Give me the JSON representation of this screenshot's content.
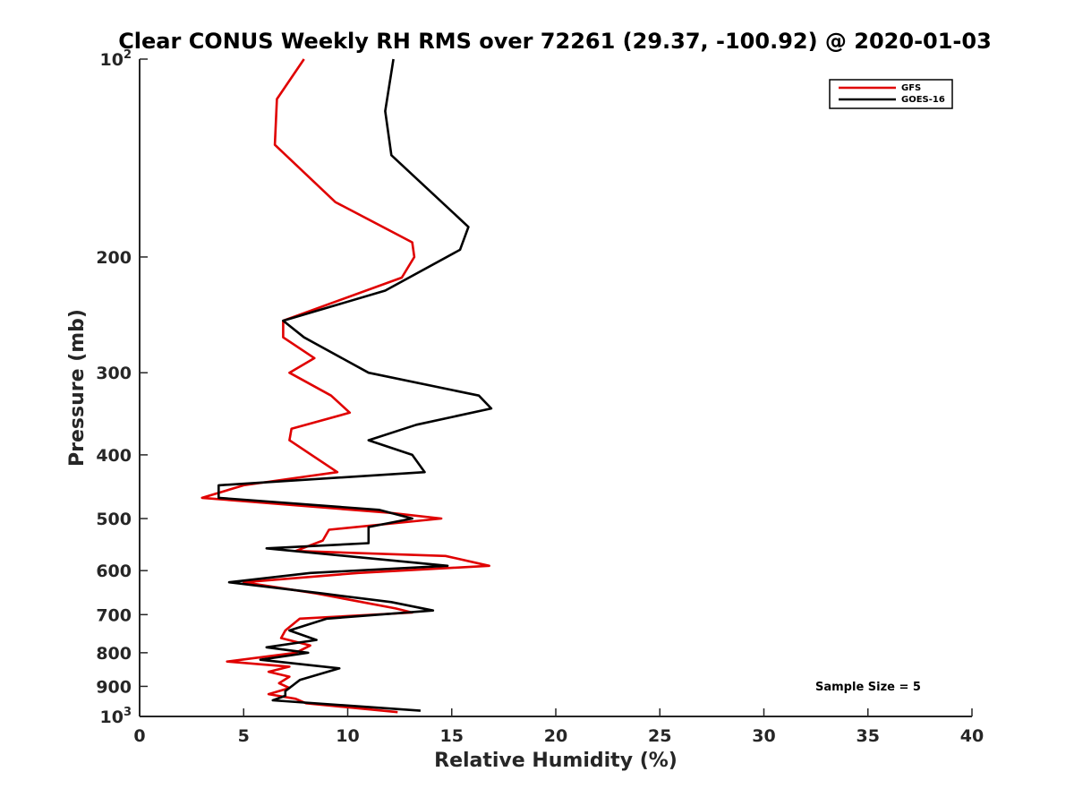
{
  "chart_data": {
    "type": "line",
    "title": "Clear CONUS Weekly RH RMS over 72261 (29.37, -100.92) @ 2020-01-03",
    "xlabel": "Relative Humidity (%)",
    "ylabel": "Pressure (mb)",
    "xlim": [
      0,
      40
    ],
    "ylim": [
      100,
      1000
    ],
    "yscale": "log",
    "y_reversed": true,
    "x_ticks": [
      "0",
      "5",
      "10",
      "15",
      "20",
      "25",
      "30",
      "35",
      "40"
    ],
    "x_tick_values": [
      0,
      5,
      10,
      15,
      20,
      25,
      30,
      35,
      40
    ],
    "y_ticks": [
      {
        "value": 100,
        "base": "10",
        "exp": "2"
      },
      {
        "value": 200,
        "base": "200",
        "exp": ""
      },
      {
        "value": 300,
        "base": "300",
        "exp": ""
      },
      {
        "value": 400,
        "base": "400",
        "exp": ""
      },
      {
        "value": 500,
        "base": "500",
        "exp": ""
      },
      {
        "value": 600,
        "base": "600",
        "exp": ""
      },
      {
        "value": 700,
        "base": "700",
        "exp": ""
      },
      {
        "value": 800,
        "base": "800",
        "exp": ""
      },
      {
        "value": 900,
        "base": "900",
        "exp": ""
      },
      {
        "value": 1000,
        "base": "10",
        "exp": "3"
      }
    ],
    "grid": false,
    "legend_position": "top-right",
    "annotation": "Sample Size = 5",
    "series": [
      {
        "name": "GFS",
        "color": "#e00000",
        "points": [
          [
            7.9,
            100
          ],
          [
            6.6,
            115
          ],
          [
            6.5,
            135
          ],
          [
            9.4,
            165
          ],
          [
            13.1,
            190
          ],
          [
            13.2,
            200
          ],
          [
            12.6,
            215
          ],
          [
            6.9,
            250
          ],
          [
            6.9,
            265
          ],
          [
            8.4,
            285
          ],
          [
            7.2,
            300
          ],
          [
            9.2,
            325
          ],
          [
            10.1,
            345
          ],
          [
            7.3,
            365
          ],
          [
            7.2,
            380
          ],
          [
            9.5,
            425
          ],
          [
            5.0,
            445
          ],
          [
            3.0,
            465
          ],
          [
            12.0,
            490
          ],
          [
            14.5,
            500
          ],
          [
            9.1,
            520
          ],
          [
            8.8,
            540
          ],
          [
            7.5,
            560
          ],
          [
            14.7,
            570
          ],
          [
            16.8,
            590
          ],
          [
            10.5,
            605
          ],
          [
            5.0,
            625
          ],
          [
            8.5,
            650
          ],
          [
            12.3,
            685
          ],
          [
            13.1,
            695
          ],
          [
            7.7,
            710
          ],
          [
            7.0,
            740
          ],
          [
            6.8,
            760
          ],
          [
            8.2,
            780
          ],
          [
            7.5,
            800
          ],
          [
            4.2,
            825
          ],
          [
            7.2,
            840
          ],
          [
            6.2,
            855
          ],
          [
            7.2,
            870
          ],
          [
            6.7,
            890
          ],
          [
            7.2,
            905
          ],
          [
            6.2,
            925
          ],
          [
            7.5,
            940
          ],
          [
            8.0,
            955
          ],
          [
            12.4,
            985
          ]
        ]
      },
      {
        "name": "GOES-16",
        "color": "#000000",
        "points": [
          [
            12.2,
            100
          ],
          [
            11.8,
            120
          ],
          [
            12.1,
            140
          ],
          [
            15.8,
            180
          ],
          [
            15.4,
            195
          ],
          [
            11.8,
            225
          ],
          [
            6.9,
            250
          ],
          [
            7.9,
            265
          ],
          [
            11.0,
            300
          ],
          [
            16.3,
            325
          ],
          [
            16.9,
            340
          ],
          [
            13.3,
            360
          ],
          [
            11.0,
            380
          ],
          [
            13.1,
            400
          ],
          [
            13.7,
            425
          ],
          [
            3.8,
            445
          ],
          [
            3.8,
            465
          ],
          [
            11.5,
            485
          ],
          [
            13.1,
            500
          ],
          [
            11.0,
            515
          ],
          [
            11.0,
            545
          ],
          [
            6.1,
            555
          ],
          [
            14.8,
            590
          ],
          [
            8.2,
            605
          ],
          [
            4.3,
            625
          ],
          [
            8.8,
            650
          ],
          [
            12.1,
            670
          ],
          [
            14.1,
            690
          ],
          [
            9.0,
            710
          ],
          [
            7.2,
            740
          ],
          [
            8.5,
            765
          ],
          [
            6.1,
            785
          ],
          [
            8.1,
            800
          ],
          [
            5.8,
            820
          ],
          [
            9.6,
            845
          ],
          [
            7.7,
            880
          ],
          [
            7.4,
            895
          ],
          [
            7.0,
            915
          ],
          [
            7.0,
            930
          ],
          [
            6.4,
            945
          ],
          [
            13.5,
            980
          ]
        ]
      }
    ]
  }
}
